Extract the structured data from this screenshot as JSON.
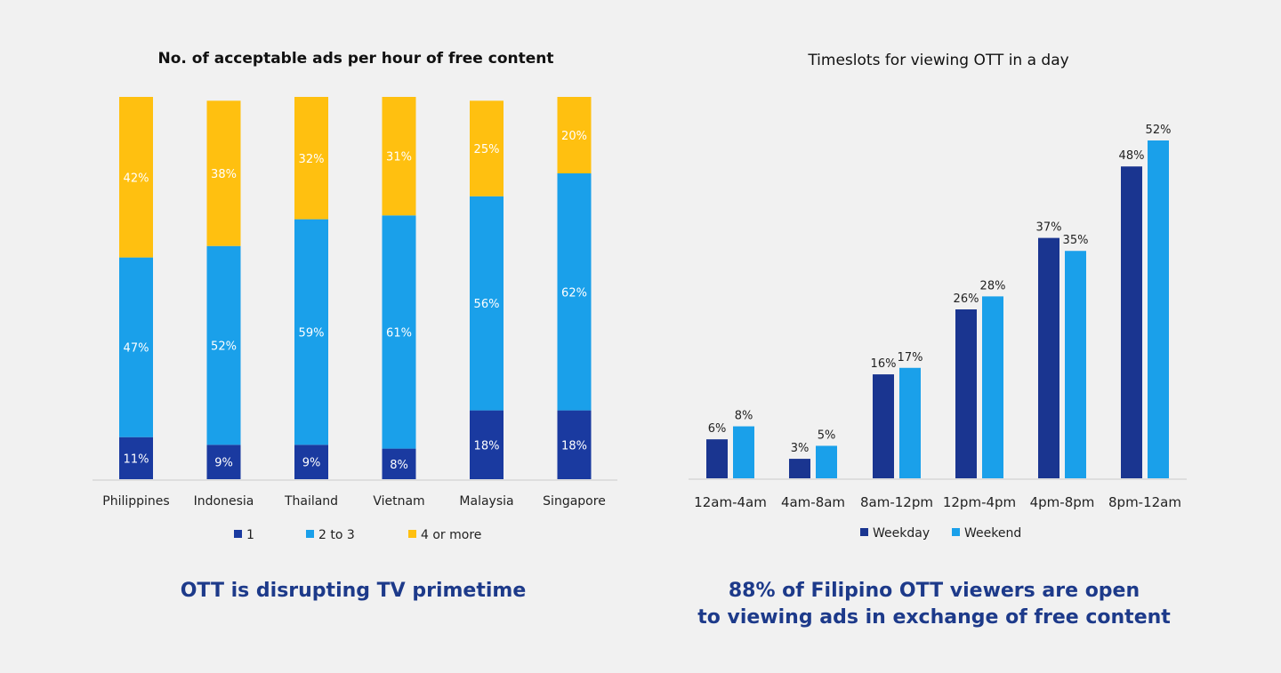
{
  "chart_data": [
    {
      "type": "bar",
      "stacked": true,
      "title": "No. of acceptable ads per hour of free content",
      "categories": [
        "Philippines",
        "Indonesia",
        "Thailand",
        "Vietnam",
        "Malaysia",
        "Singapore"
      ],
      "series": [
        {
          "name": "1",
          "color": "#1a3aa0",
          "values": [
            11,
            9,
            9,
            8,
            18,
            18
          ],
          "labels": [
            "11%",
            "9%",
            "9%",
            "8%",
            "18%",
            "18%"
          ]
        },
        {
          "name": "2 to 3",
          "color": "#1aa0ea",
          "values": [
            47,
            52,
            59,
            61,
            56,
            62
          ],
          "labels": [
            "47%",
            "52%",
            "59%",
            "61%",
            "56%",
            "62%"
          ]
        },
        {
          "name": "4 or more",
          "color": "#ffc010",
          "values": [
            42,
            38,
            32,
            31,
            25,
            20
          ],
          "labels": [
            "42%",
            "38%",
            "32%",
            "31%",
            "25%",
            "20%"
          ]
        }
      ],
      "ylim": [
        0,
        100
      ],
      "legend": "bottom"
    },
    {
      "type": "bar",
      "title": "Timeslots for viewing OTT in a day",
      "categories": [
        "12am-4am",
        "4am-8am",
        "8am-12pm",
        "12pm-4pm",
        "4pm-8pm",
        "8pm-12am"
      ],
      "series": [
        {
          "name": "Weekday",
          "color": "#1a3590",
          "values": [
            6,
            3,
            16,
            26,
            37,
            48
          ],
          "labels": [
            "6%",
            "3%",
            "16%",
            "26%",
            "37%",
            "48%"
          ]
        },
        {
          "name": "Weekend",
          "color": "#1aa0ea",
          "values": [
            8,
            5,
            17,
            28,
            35,
            52
          ],
          "labels": [
            "8%",
            "5%",
            "17%",
            "28%",
            "35%",
            "52%"
          ]
        }
      ],
      "ylim": [
        0,
        52
      ],
      "legend": "bottom"
    }
  ],
  "captions": {
    "left": "OTT is disrupting TV primetime",
    "right_line1": "88% of Filipino OTT viewers are open",
    "right_line2": "to viewing ads in exchange of free content"
  }
}
